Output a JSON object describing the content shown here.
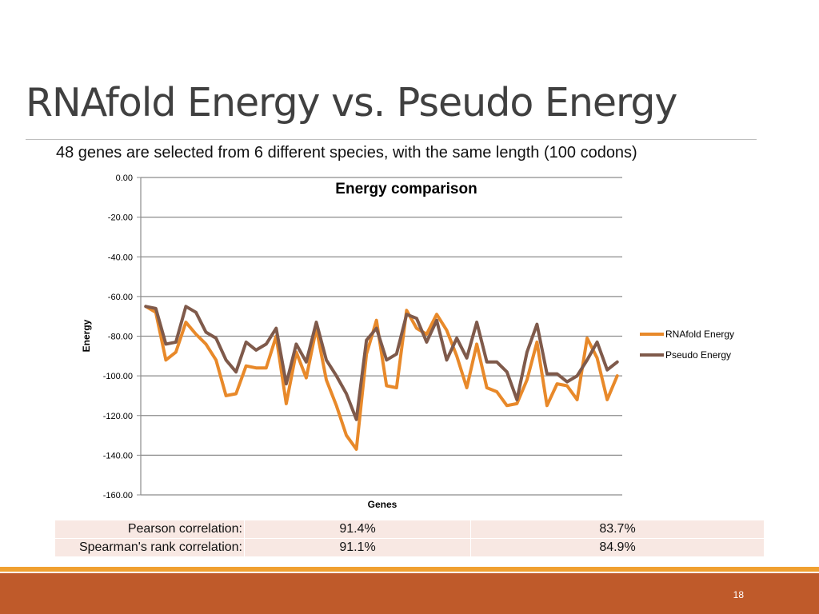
{
  "slide": {
    "title": "RNAfold Energy vs. Pseudo Energy",
    "subtitle": "48 genes are selected from 6 different species, with the same length (100 codons)",
    "page_number": "18"
  },
  "table": {
    "rows": [
      {
        "label": "Pearson correlation:",
        "v1": "91.4%",
        "v2": "83.7%"
      },
      {
        "label": "Spearman's rank correlation:",
        "v1": "91.1%",
        "v2": "84.9%"
      }
    ]
  },
  "colors": {
    "rnafold": "#e8892a",
    "pseudo": "#7f5a4b",
    "grid": "#8c8c8c",
    "footer": "#bf5a2a",
    "strip": "#f0a030"
  },
  "chart_data": {
    "type": "line",
    "title": "Energy comparison",
    "xlabel": "Genes",
    "ylabel": "Energy",
    "ylim": [
      -160,
      0
    ],
    "yticks": [
      "0.00",
      "-20.00",
      "-40.00",
      "-60.00",
      "-80.00",
      "-100.00",
      "-120.00",
      "-140.00",
      "-160.00"
    ],
    "grid": true,
    "legend_position": "right",
    "series": [
      {
        "name": "RNAfold Energy",
        "values": [
          -65,
          -68,
          -92,
          -88,
          -73,
          -79,
          -84,
          -92,
          -110,
          -109,
          -95,
          -96,
          -96,
          -80,
          -114,
          -88,
          -101,
          -76,
          -102,
          -115,
          -130,
          -137,
          -89,
          -72,
          -105,
          -106,
          -67,
          -76,
          -79,
          -69,
          -77,
          -90,
          -106,
          -84,
          -106,
          -108,
          -115,
          -114,
          -102,
          -83,
          -115,
          -104,
          -105,
          -112,
          -81,
          -91,
          -112,
          -100
        ]
      },
      {
        "name": "Pseudo Energy",
        "values": [
          -65,
          -66,
          -84,
          -83,
          -65,
          -68,
          -78,
          -81,
          -92,
          -98,
          -83,
          -87,
          -84,
          -76,
          -104,
          -84,
          -93,
          -73,
          -92,
          -100,
          -109,
          -122,
          -82,
          -76,
          -92,
          -89,
          -69,
          -71,
          -83,
          -72,
          -92,
          -81,
          -91,
          -73,
          -93,
          -93,
          -98,
          -112,
          -88,
          -74,
          -99,
          -99,
          -103,
          -100,
          -92,
          -83,
          -97,
          -93
        ]
      }
    ]
  }
}
